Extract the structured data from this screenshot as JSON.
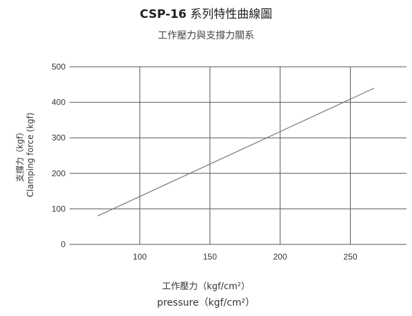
{
  "title_model": "CSP-16",
  "title_rest": " 系列特性曲線圖",
  "subtitle": "工作壓力與支撐力關系",
  "ylabel_cn": "支撐力（kgf）",
  "ylabel_en": "Clamping force (kgf)",
  "xlabel_cn": "工作壓力（kgf/cm²）",
  "xlabel_en": "pressure（kgf/cm²）",
  "colors": {
    "grid": "#555555",
    "line": "#777777",
    "text": "#333333"
  },
  "chart_data": {
    "type": "line",
    "title": "CSP-16 系列特性曲線圖",
    "subtitle": "工作壓力與支撐力關系",
    "xlabel": "工作壓力（kgf/cm²） pressure（kgf/cm²）",
    "ylabel": "支撐力（kgf） Clamping force (kgf)",
    "xlim": [
      50,
      290
    ],
    "ylim": [
      0,
      500
    ],
    "x_ticks": [
      100,
      150,
      200,
      250
    ],
    "y_ticks": [
      0,
      100,
      200,
      300,
      400,
      500
    ],
    "grid": true,
    "series": [
      {
        "x": [
          70,
          267
        ],
        "values": [
          80,
          440
        ]
      }
    ]
  }
}
